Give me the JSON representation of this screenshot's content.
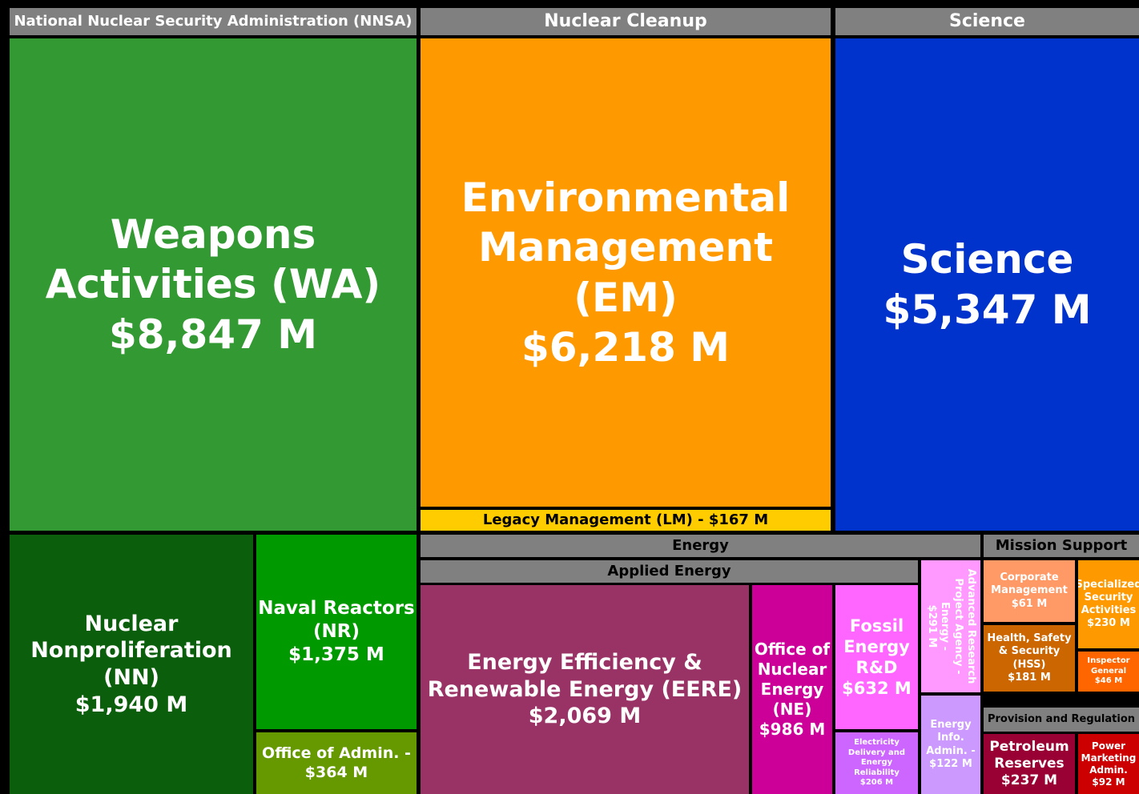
{
  "chart_data": {
    "type": "treemap",
    "headers": [
      {
        "name": "National Nuclear Security Administration (NNSA)"
      },
      {
        "name": "Nuclear Cleanup"
      },
      {
        "name": "Science"
      },
      {
        "name": "Energy"
      },
      {
        "name": "Applied Energy"
      },
      {
        "name": "Mission Support"
      },
      {
        "name": "Provision and Regulation"
      }
    ],
    "items": [
      {
        "name": "Weapons Activities (WA)",
        "value": 8847,
        "value_label": "$8,847 M",
        "color": "#339933"
      },
      {
        "name": "Nuclear Nonproliferation (NN)",
        "value": 1940,
        "value_label": "$1,940 M",
        "color": "#0b5e0b"
      },
      {
        "name": "Naval Reactors (NR)",
        "value": 1375,
        "value_label": "$1,375 M",
        "color": "#009900"
      },
      {
        "name": "Office of Admin. -",
        "value": 364,
        "value_label": "$364 M",
        "color": "#669900"
      },
      {
        "name": "Environmental Management (EM)",
        "value": 6218,
        "value_label": "$6,218 M",
        "color": "#ff9900"
      },
      {
        "name": "Legacy Management (LM) -",
        "value": 167,
        "value_label": "$167 M",
        "color": "#ffcc00"
      },
      {
        "name": "Science",
        "value": 5347,
        "value_label": "$5,347 M",
        "color": "#0033cc"
      },
      {
        "name": "Energy Efficiency & Renewable Energy (EERE)",
        "value": 2069,
        "value_label": "$2,069 M",
        "color": "#993366"
      },
      {
        "name": "Office of Nuclear Energy (NE)",
        "value": 986,
        "value_label": "$986 M",
        "color": "#cc0099"
      },
      {
        "name": "Fossil Energy R&D",
        "value": 632,
        "value_label": "$632 M",
        "color": "#ff66ff"
      },
      {
        "name": "Electricity Delivery and Energy Reliability",
        "value": 206,
        "value_label": "$206 M",
        "color": "#cc66ff"
      },
      {
        "name": "Advanced Research Project Agency - Energy -",
        "value": 291,
        "value_label": "$291 M",
        "color": "#ff99ff"
      },
      {
        "name": "Energy Info. Admin. -",
        "value": 122,
        "value_label": "$122 M",
        "color": "#cc99ff"
      },
      {
        "name": "Corporate Management",
        "value": 61,
        "value_label": "$61 M",
        "color": "#ff9966"
      },
      {
        "name": "Health, Safety & Security (HSS)",
        "value": 181,
        "value_label": "$181 M",
        "color": "#cc6600"
      },
      {
        "name": "Specialized Security Activities",
        "value": 230,
        "value_label": "$230 M",
        "color": "#ff9900"
      },
      {
        "name": "Inspector General",
        "value": 46,
        "value_label": "$46 M",
        "color": "#ff6600"
      },
      {
        "name": "Petroleum Reserves",
        "value": 237,
        "value_label": "$237 M",
        "color": "#990033"
      },
      {
        "name": "Power Marketing Admin.",
        "value": 92,
        "value_label": "$92 M",
        "color": "#cc0000"
      }
    ]
  }
}
